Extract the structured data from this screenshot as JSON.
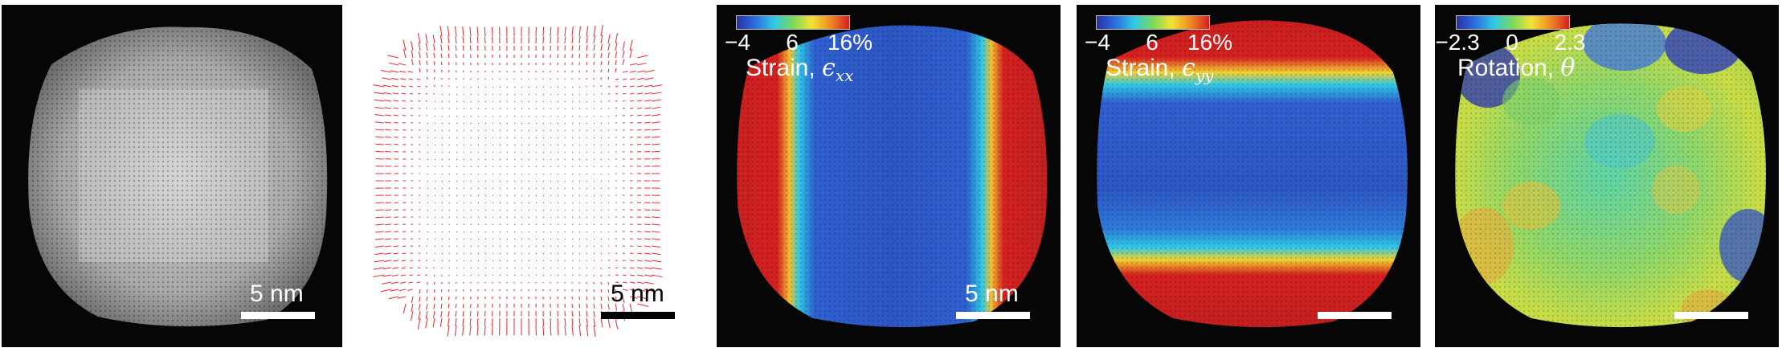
{
  "figure": {
    "panel_a": {
      "scale_label": "5 nm"
    },
    "panel_b": {
      "scale_label": "5 nm"
    },
    "panel_c": {
      "ticks": [
        "−4",
        "6",
        "16%"
      ],
      "title_text": "Strain, ",
      "title_symbol": "ϵ",
      "title_subscript": "xx",
      "scale_label": "5 nm",
      "colormap": [
        "#2a2f9c",
        "#2f6ee0",
        "#2ec8e6",
        "#7cd85a",
        "#f3e238",
        "#f08a22",
        "#d42020"
      ]
    },
    "panel_d": {
      "ticks": [
        "−4",
        "6",
        "16%"
      ],
      "title_text": "Strain, ",
      "title_symbol": "ϵ",
      "title_subscript": "yy"
    },
    "panel_e": {
      "ticks": [
        "−2.3",
        "0",
        "2.3"
      ],
      "title_text": "Rotation, ",
      "title_symbol": "θ"
    }
  }
}
